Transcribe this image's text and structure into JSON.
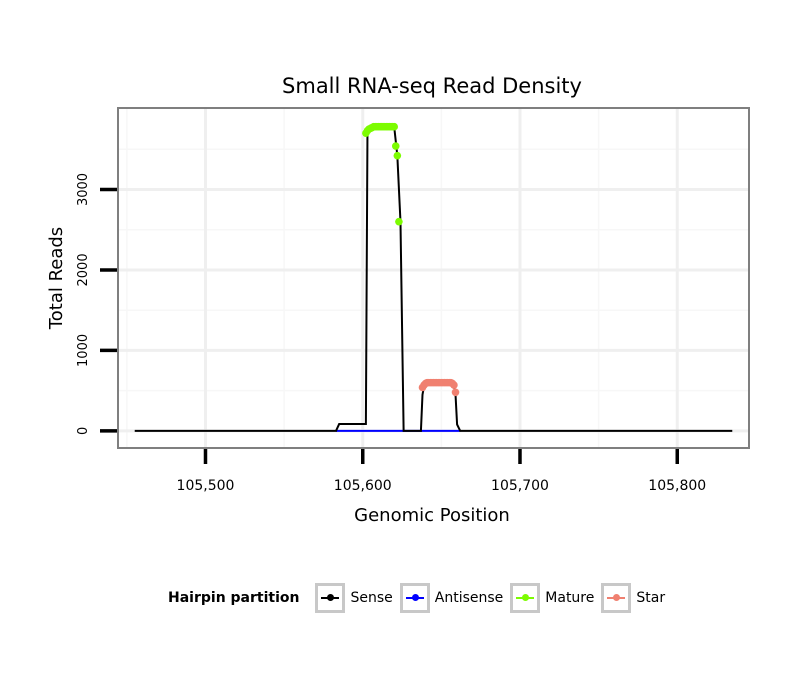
{
  "chart_data": {
    "type": "line",
    "title": "Small RNA-seq Read Density",
    "xlabel": "Genomic Position",
    "ylabel": "Total Reads",
    "xlim": [
      105445,
      105845
    ],
    "ylim": [
      -200,
      4000
    ],
    "x_ticks": [
      105500,
      105600,
      105700,
      105800
    ],
    "x_tick_labels": [
      "105,500",
      "105,600",
      "105,700",
      "105,800"
    ],
    "y_ticks": [
      0,
      1000,
      2000,
      3000
    ],
    "y_tick_labels": [
      "0",
      "1000",
      "2000",
      "3000"
    ],
    "grid": true,
    "legend_position": "bottom",
    "series": [
      {
        "name": "Sense",
        "color": "#000000",
        "kind": "line",
        "x": [
          105455,
          105583,
          105585,
          105602,
          105603,
          105605,
          105607,
          105620,
          105622,
          105624,
          105626,
          105637,
          105638,
          105639,
          105640,
          105657,
          105658,
          105659,
          105660,
          105662,
          105835
        ],
        "y": [
          0,
          0,
          85,
          85,
          3700,
          3760,
          3780,
          3780,
          3420,
          2600,
          0,
          0,
          450,
          560,
          600,
          600,
          560,
          450,
          80,
          0,
          0
        ]
      },
      {
        "name": "Antisense",
        "color": "#0000ff",
        "kind": "line",
        "x": [
          105583,
          105662
        ],
        "y": [
          0,
          0
        ]
      },
      {
        "name": "Mature",
        "color": "#7cfc00",
        "kind": "points",
        "x": [
          105602,
          105603,
          105604,
          105605,
          105606,
          105607,
          105608,
          105609,
          105610,
          105611,
          105612,
          105613,
          105614,
          105615,
          105616,
          105617,
          105618,
          105619,
          105620,
          105621,
          105622,
          105623
        ],
        "y": [
          3700,
          3730,
          3750,
          3760,
          3770,
          3780,
          3780,
          3780,
          3780,
          3780,
          3780,
          3780,
          3780,
          3780,
          3780,
          3780,
          3780,
          3780,
          3780,
          3540,
          3420,
          2600
        ]
      },
      {
        "name": "Star",
        "color": "#f08070",
        "kind": "points",
        "x": [
          105638,
          105639,
          105640,
          105641,
          105642,
          105643,
          105644,
          105645,
          105646,
          105647,
          105648,
          105649,
          105650,
          105651,
          105652,
          105653,
          105654,
          105655,
          105656,
          105657,
          105658,
          105659
        ],
        "y": [
          540,
          570,
          590,
          600,
          600,
          600,
          600,
          600,
          600,
          600,
          600,
          600,
          600,
          600,
          600,
          600,
          600,
          600,
          600,
          590,
          570,
          480
        ]
      }
    ]
  },
  "legend": {
    "title": "Hairpin partition",
    "items": [
      {
        "label": "Sense",
        "color": "#000000"
      },
      {
        "label": "Antisense",
        "color": "#0000ff"
      },
      {
        "label": "Mature",
        "color": "#7cfc00"
      },
      {
        "label": "Star",
        "color": "#f08070"
      }
    ]
  }
}
